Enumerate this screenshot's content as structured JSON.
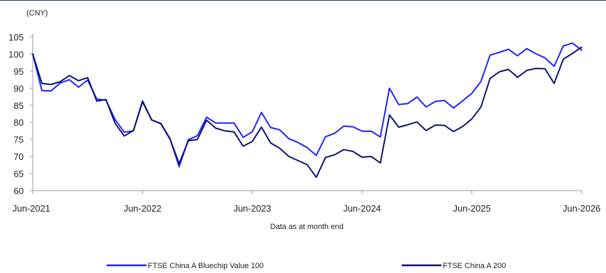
{
  "chart_data": {
    "type": "line",
    "ylabel": "(CNY)",
    "note": "Data as at month end",
    "ylim": [
      60,
      105
    ],
    "yticks": [
      60,
      65,
      70,
      75,
      80,
      85,
      90,
      95,
      100,
      105
    ],
    "xticks": [
      "Jun-2021",
      "Jun-2022",
      "Jun-2023",
      "Jun-2024",
      "Jun-2025",
      "Jun-2026"
    ],
    "x": [
      "2021-06",
      "2021-07",
      "2021-08",
      "2021-09",
      "2021-10",
      "2021-11",
      "2021-12",
      "2022-01",
      "2022-02",
      "2022-03",
      "2022-04",
      "2022-05",
      "2022-06",
      "2022-07",
      "2022-08",
      "2022-09",
      "2022-10",
      "2022-11",
      "2022-12",
      "2023-01",
      "2023-02",
      "2023-03",
      "2023-04",
      "2023-05",
      "2023-06",
      "2023-07",
      "2023-08",
      "2023-09",
      "2023-10",
      "2023-11",
      "2023-12",
      "2024-01",
      "2024-02",
      "2024-03",
      "2024-04",
      "2024-05",
      "2024-06",
      "2024-07",
      "2024-08",
      "2024-09",
      "2024-10",
      "2024-11",
      "2024-12",
      "2025-01",
      "2025-02",
      "2025-03",
      "2025-04",
      "2025-05",
      "2025-06",
      "2025-07",
      "2025-08",
      "2025-09",
      "2025-10",
      "2025-11",
      "2025-12",
      "2026-01",
      "2026-02",
      "2026-03",
      "2026-04",
      "2026-05",
      "2026-06"
    ],
    "series": [
      {
        "name": "FTSE China A Bluechip Value 100",
        "color": "#1e22ff",
        "values": [
          100,
          89.3,
          89.2,
          91.5,
          92.5,
          90.3,
          92.4,
          86.8,
          86.5,
          80.8,
          77.1,
          77.5,
          86.3,
          80.7,
          79.7,
          75.2,
          67.0,
          74.9,
          76.1,
          81.5,
          79.8,
          79.8,
          79.8,
          75.6,
          77.2,
          82.9,
          78.5,
          77.8,
          75.2,
          74.1,
          72.6,
          70.3,
          75.8,
          76.8,
          78.9,
          78.7,
          77.4,
          77.4,
          75.7,
          90.0,
          85.2,
          85.5,
          87.4,
          84.5,
          86.1,
          86.4,
          84.2,
          86.3,
          88.5,
          92.0,
          99.7,
          100.5,
          101.4,
          99.5,
          101.6,
          100.1,
          98.9,
          96.4,
          102.4,
          103.2,
          101.2
        ]
      },
      {
        "name": "FTSE China A 200",
        "color": "#0d1173",
        "values": [
          100,
          91.4,
          91.1,
          91.9,
          93.7,
          92.2,
          93.1,
          86.2,
          86.7,
          79.7,
          76.0,
          77.6,
          86.0,
          80.7,
          79.6,
          75.1,
          67.9,
          74.6,
          75.0,
          80.6,
          78.3,
          77.5,
          77.2,
          73.0,
          74.4,
          78.6,
          74.0,
          72.4,
          70.0,
          68.8,
          67.6,
          63.9,
          69.7,
          70.5,
          72.0,
          71.5,
          69.8,
          70.0,
          68.1,
          82.2,
          78.6,
          79.3,
          80.1,
          77.6,
          79.2,
          79.1,
          77.3,
          78.8,
          81.0,
          84.5,
          92.9,
          94.8,
          95.5,
          93.2,
          95.2,
          95.8,
          95.7,
          91.4,
          98.5,
          100.2,
          102.0
        ]
      }
    ],
    "legend_position": "bottom"
  }
}
